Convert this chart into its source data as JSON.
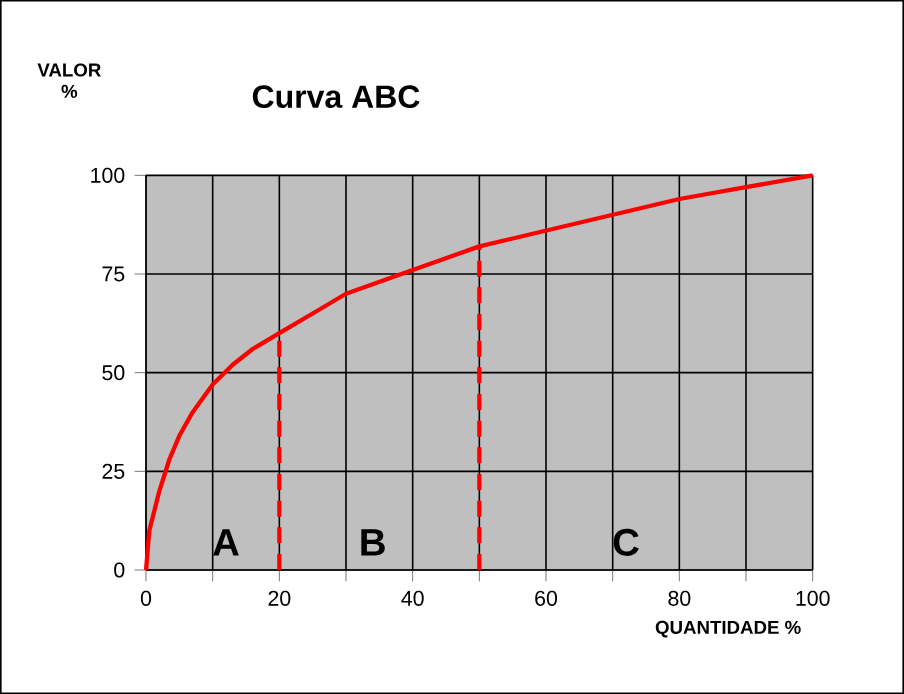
{
  "chart_data": {
    "type": "line",
    "title": "Curva ABC",
    "xlabel": "QUANTIDADE %",
    "ylabel": "VALOR %",
    "xlim": [
      0,
      100
    ],
    "ylim": [
      0,
      100
    ],
    "xticks": [
      0,
      {
        "value": 10,
        "label": null
      },
      20,
      {
        "value": 30,
        "label": null
      },
      40,
      {
        "value": 50,
        "label": null
      },
      60,
      {
        "value": 70,
        "label": null
      },
      80,
      {
        "value": 90,
        "label": null
      },
      100
    ],
    "yticks": [
      0,
      25,
      50,
      75,
      100
    ],
    "grid": true,
    "marker": "none",
    "series": [
      {
        "color": "#ff0000",
        "line_style": "solid",
        "x": [
          0,
          0.5,
          2,
          3.5,
          5,
          7,
          10,
          13,
          16,
          20,
          25,
          30,
          40,
          50,
          60,
          70,
          80,
          90,
          100
        ],
        "values": [
          0,
          10,
          20,
          28,
          34,
          40,
          47,
          52,
          56,
          60,
          65,
          70,
          76,
          82,
          86,
          90,
          94,
          97,
          100
        ]
      },
      {
        "color": "#ff0000",
        "line_style": "dashed",
        "x": [
          20,
          20
        ],
        "values": [
          0,
          60
        ]
      },
      {
        "color": "#ff0000",
        "line_style": "dashed",
        "x": [
          50,
          50
        ],
        "values": [
          0,
          82
        ]
      }
    ],
    "annotations": [
      "A",
      "B",
      "C"
    ]
  }
}
